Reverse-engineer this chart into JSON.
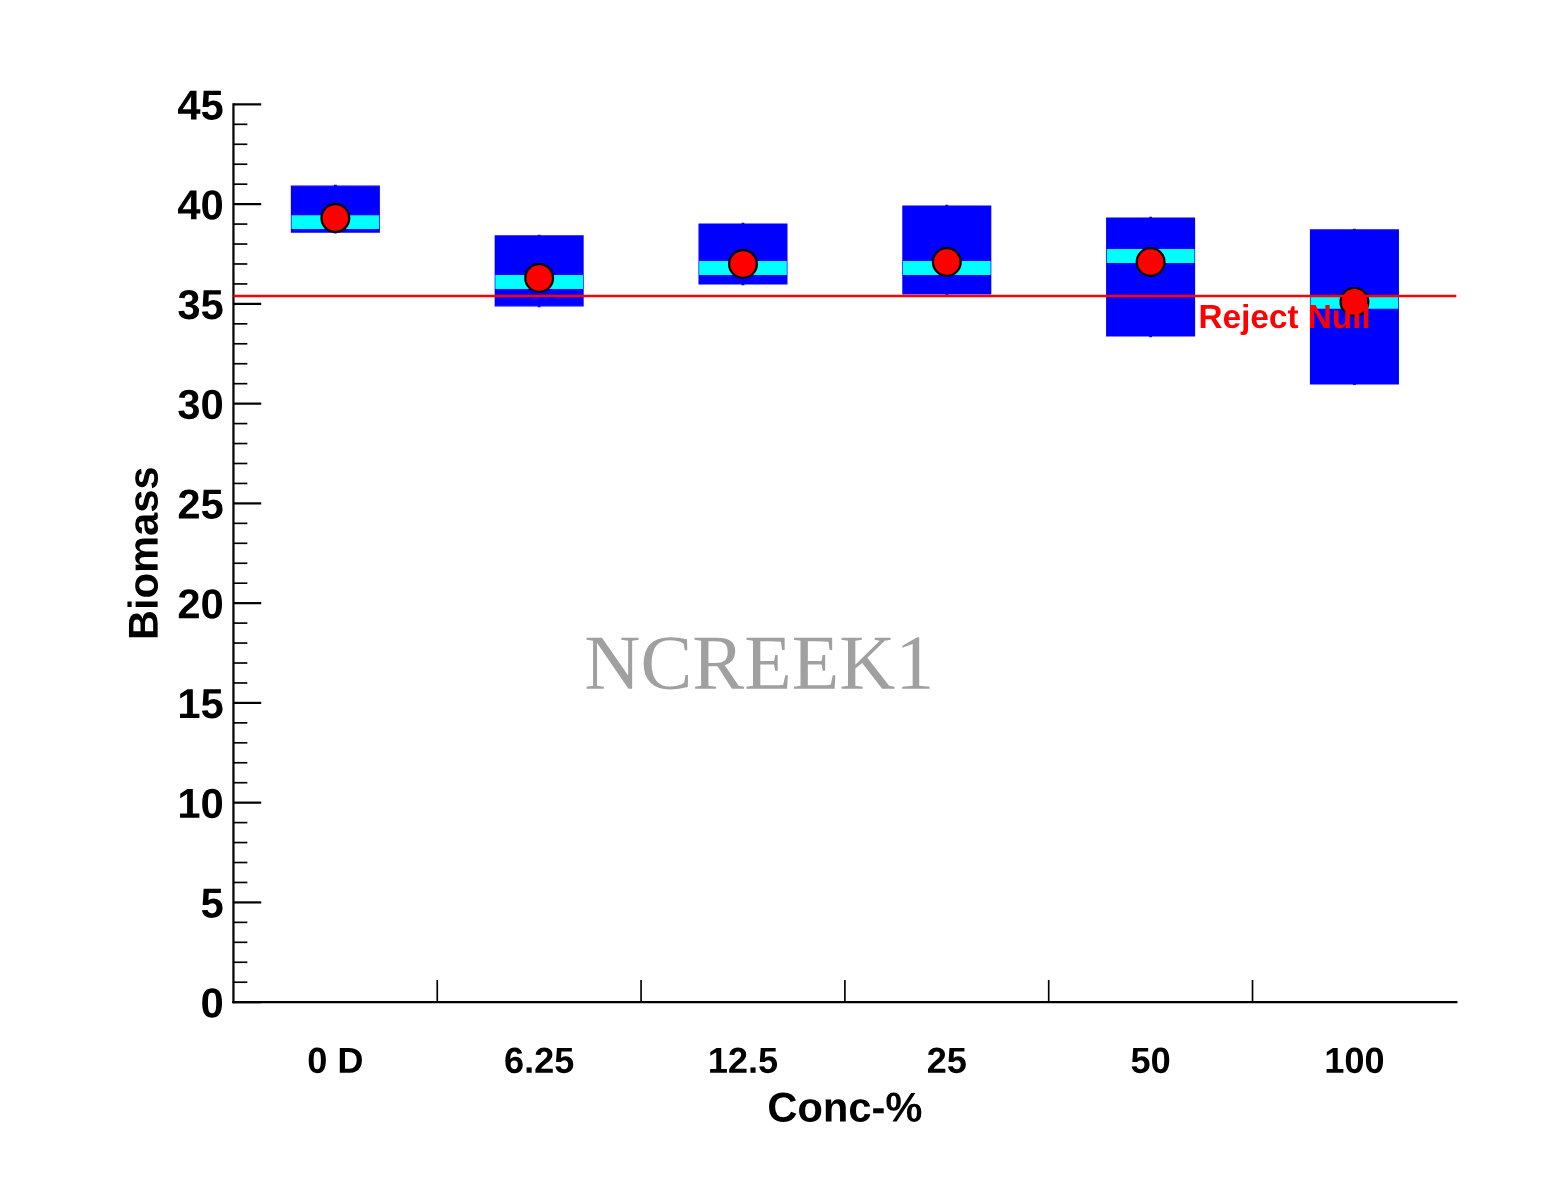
{
  "chart_data": {
    "type": "box",
    "xlabel": "Conc-%",
    "ylabel": "Biomass",
    "categories": [
      "0 D",
      "6.25",
      "12.5",
      "25",
      "50",
      "100"
    ],
    "series": [
      {
        "color": "#0000ff",
        "boxes": [
          {
            "low": 38.6,
            "q1": 38.6,
            "median": 39.1,
            "q3": 40.9,
            "high": 40.9,
            "mean": 39.3
          },
          {
            "low": 34.9,
            "q1": 34.9,
            "median": 36.1,
            "q3": 38.4,
            "high": 38.4,
            "mean": 36.3
          },
          {
            "low": 36.0,
            "q1": 36.0,
            "median": 36.8,
            "q3": 39.0,
            "high": 39.0,
            "mean": 37.0
          },
          {
            "low": 35.5,
            "q1": 35.5,
            "median": 36.8,
            "q3": 39.9,
            "high": 39.9,
            "mean": 37.1
          },
          {
            "low": 33.4,
            "q1": 33.4,
            "median": 37.4,
            "q3": 39.3,
            "high": 39.3,
            "mean": 37.1
          },
          {
            "low": 31.0,
            "q1": 31.0,
            "median": 35.1,
            "q3": 38.7,
            "high": 38.7,
            "mean": 35.1
          }
        ]
      }
    ],
    "ylim": [
      0,
      45
    ],
    "yticks": [
      0,
      5,
      10,
      15,
      20,
      25,
      30,
      35,
      40,
      45
    ],
    "ref_lines": [
      {
        "axis": "y",
        "value": 35.4,
        "label": "Reject Null",
        "color": "#ff0000"
      }
    ],
    "annotations": [
      "NCREEK1"
    ]
  }
}
